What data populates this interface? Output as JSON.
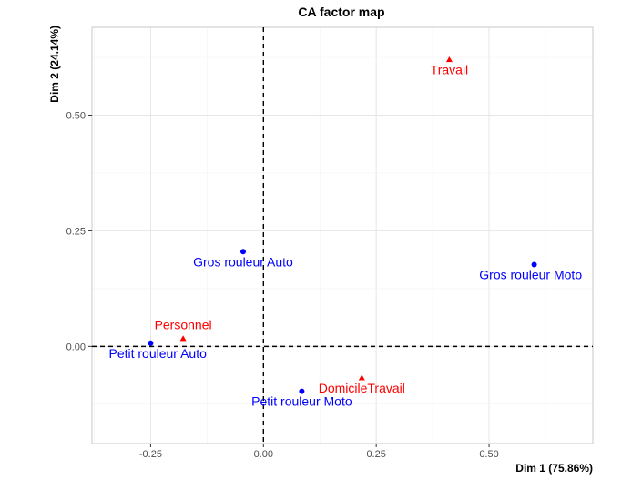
{
  "chart_data": {
    "type": "scatter",
    "title": "CA factor map",
    "xlabel": "Dim 1 (75.86%)",
    "ylabel": "Dim 2 (24.14%)",
    "xlim": [
      -0.38,
      0.73
    ],
    "ylim": [
      -0.21,
      0.69
    ],
    "x_ticks": [
      -0.25,
      0.0,
      0.25,
      0.5
    ],
    "x_tick_labels": [
      "-0.25",
      "0.00",
      "0.25",
      "0.50"
    ],
    "y_ticks": [
      0.0,
      0.25,
      0.5
    ],
    "y_tick_labels": [
      "0.00",
      "0.25",
      "0.50"
    ],
    "grid": true,
    "reference_lines": {
      "x": 0,
      "y": 0,
      "style": "dashed"
    },
    "series": [
      {
        "marker": "circle",
        "color": "#0000ff",
        "points": [
          {
            "label": "Gros rouleur Auto",
            "x": -0.045,
            "y": 0.205
          },
          {
            "label": "Gros rouleur Moto",
            "x": 0.6,
            "y": 0.177
          },
          {
            "label": "Petit rouleur Auto",
            "x": -0.25,
            "y": 0.007
          },
          {
            "label": "Petit rouleur Moto",
            "x": 0.085,
            "y": -0.097
          }
        ]
      },
      {
        "marker": "triangle",
        "color": "#ff0000",
        "points": [
          {
            "label": "Travail",
            "x": 0.412,
            "y": 0.62
          },
          {
            "label": "Personnel",
            "x": -0.178,
            "y": 0.017
          },
          {
            "label": "DomicileTravail",
            "x": 0.218,
            "y": -0.068
          }
        ]
      }
    ]
  }
}
